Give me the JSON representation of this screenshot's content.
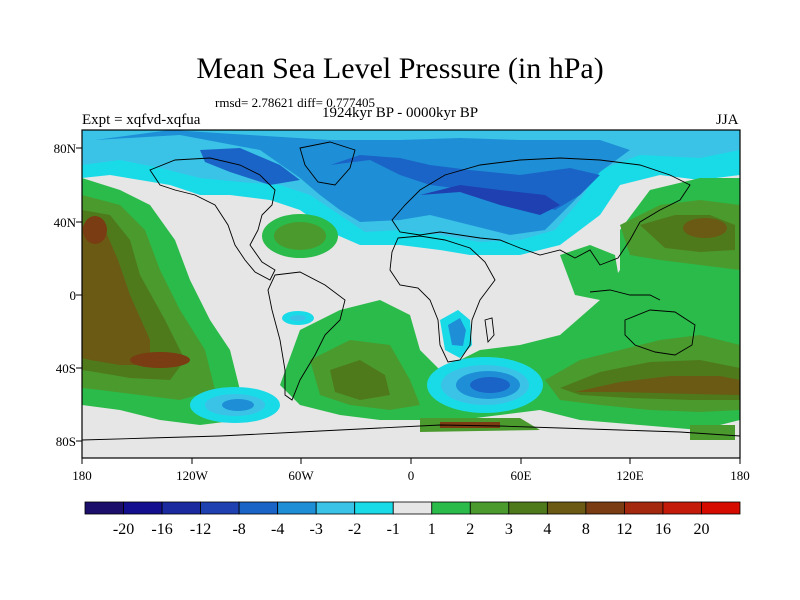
{
  "title": "Mean Sea Level Pressure (in hPa)",
  "stats": "rmsd= 2.78621 diff= 0.777405",
  "period": "1924kyr BP - 0000kyr BP",
  "experiment": "Expt = xqfvd-xqfua",
  "season": "JJA",
  "lat_ticks": [
    "80N",
    "40N",
    "0",
    "40S",
    "80S"
  ],
  "lon_ticks": [
    "180",
    "120W",
    "60W",
    "0",
    "60E",
    "120E",
    "180"
  ],
  "colorbar": {
    "labels": [
      "-20",
      "-16",
      "-12",
      "-8",
      "-4",
      "-3",
      "-2",
      "-1",
      "1",
      "2",
      "3",
      "4",
      "8",
      "12",
      "16",
      "20"
    ],
    "colors": [
      "#1c0f6b",
      "#130f8f",
      "#1b2b9f",
      "#1e40b0",
      "#1a64c7",
      "#1e8fd6",
      "#3ac3e6",
      "#19dbe8",
      "#e6e6e6",
      "#2bbb4a",
      "#4a9a2e",
      "#4f7a1c",
      "#6a5a14",
      "#7a3c12",
      "#a3280e",
      "#c41a0a",
      "#d60b00"
    ]
  },
  "colors": {
    "land_outline": "#000000",
    "neutral": "#e6e6e6"
  }
}
